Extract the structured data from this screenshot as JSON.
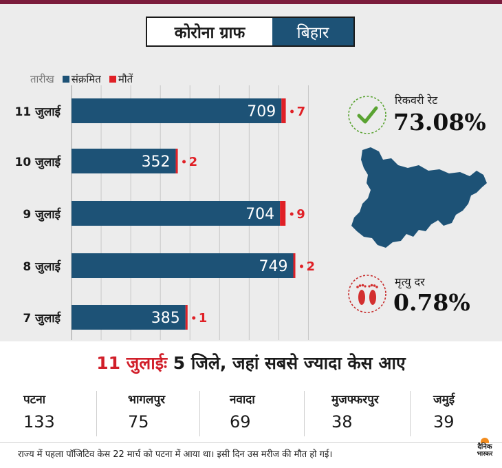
{
  "title": {
    "main": "कोरोना ग्राफ",
    "state": "बिहार"
  },
  "legend": {
    "date_header": "तारीख",
    "infected": "संक्रमित",
    "deaths": "मौतें"
  },
  "colors": {
    "infected": "#1d5276",
    "deaths": "#e02026",
    "accent_red": "#d11f2a",
    "check": "#5aa332"
  },
  "chart_data": {
    "type": "bar",
    "orientation": "horizontal",
    "categories": [
      "11 जुलाई",
      "10 जुलाई",
      "9 जुलाई",
      "8 जुलाई",
      "7 जुलाई"
    ],
    "series": [
      {
        "name": "संक्रमित",
        "values": [
          709,
          352,
          704,
          749,
          385
        ]
      },
      {
        "name": "मौतें",
        "values": [
          7,
          2,
          9,
          2,
          1
        ]
      }
    ],
    "xlim": [
      0,
      850
    ],
    "grid": true,
    "legend_position": "top-left"
  },
  "recovery": {
    "label": "रिकवरी रेट",
    "value": "73.08%",
    "icon": "check-circle-icon"
  },
  "mortality": {
    "label": "मृत्यु दर",
    "value": "0.78%",
    "icon": "footprints-icon"
  },
  "districts": {
    "title_highlight": "11 जुलाई",
    "title_rest": "ः 5 जिले, जहां सबसे ज्यादा केस आए",
    "items": [
      {
        "name": "पटना",
        "value": "133"
      },
      {
        "name": "भागलपुर",
        "value": "75"
      },
      {
        "name": "नवादा",
        "value": "69"
      },
      {
        "name": "मुजफ्फरपुर",
        "value": "38"
      },
      {
        "name": "जमुई",
        "value": "39"
      }
    ]
  },
  "footnote": "राज्य में पहला पॉजिटिव केस 22 मार्च को पटना में आया था। इसी दिन उस मरीज की मौत हो गई।",
  "logo": {
    "line1": "दैनिक",
    "line2": "भास्कर"
  }
}
